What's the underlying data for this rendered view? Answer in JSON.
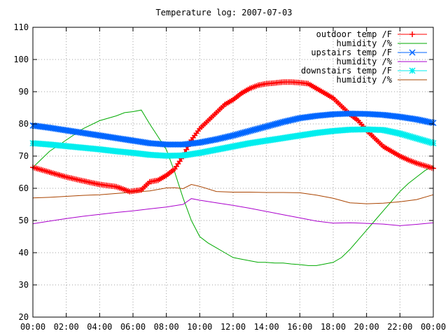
{
  "chart_data": {
    "type": "line",
    "title": "Temperature log: 2007-07-03",
    "xlabel": "",
    "ylabel": "",
    "xlim": [
      0,
      24
    ],
    "ylim": [
      20,
      110
    ],
    "x_ticks": [
      "00:00",
      "02:00",
      "04:00",
      "06:00",
      "08:00",
      "10:00",
      "12:00",
      "14:00",
      "16:00",
      "18:00",
      "20:00",
      "22:00",
      "00:00"
    ],
    "y_ticks": [
      "20",
      "30",
      "40",
      "50",
      "60",
      "70",
      "80",
      "90",
      "100",
      "110"
    ],
    "grid": true,
    "legend_position": "top-right",
    "series": [
      {
        "name": "outdoor temp /F",
        "color": "#ff0000",
        "marker": "plus",
        "x": [
          0,
          1,
          2,
          3,
          4,
          5,
          5.8,
          6.5,
          7,
          7.5,
          8,
          8.5,
          9,
          9.5,
          10,
          10.5,
          11,
          11.5,
          12,
          12.5,
          13,
          13.5,
          14,
          14.5,
          15,
          15.5,
          16,
          16.5,
          17,
          17.5,
          18,
          18.5,
          19,
          19.5,
          20,
          20.5,
          21,
          21.5,
          22,
          22.5,
          23,
          23.5,
          24
        ],
        "y": [
          66.5,
          65,
          63.5,
          62.3,
          61.2,
          60.5,
          59,
          59.5,
          62,
          62.5,
          64,
          66,
          70,
          75,
          78.5,
          81,
          83.5,
          86,
          87.5,
          89.5,
          91,
          92,
          92.5,
          92.7,
          93,
          93,
          92.8,
          92.5,
          91,
          89.5,
          88,
          85.5,
          83,
          81,
          78,
          75.5,
          73,
          71.5,
          70,
          68.8,
          67.8,
          67,
          66.2
        ]
      },
      {
        "name": "humidity /%",
        "color": "#00aa00",
        "marker": "none",
        "x": [
          0,
          1,
          2,
          3,
          4,
          5,
          5.5,
          6,
          6.5,
          7,
          7.5,
          8,
          8.5,
          9,
          9.5,
          10,
          10.5,
          11,
          11.5,
          12,
          12.5,
          13,
          13.5,
          14,
          14.5,
          15,
          15.5,
          16,
          16.5,
          17,
          17.5,
          18,
          18.5,
          19,
          19.5,
          20,
          20.5,
          21,
          21.5,
          22,
          22.5,
          23,
          23.5,
          24
        ],
        "y": [
          66.5,
          71.5,
          75,
          78.5,
          81,
          82.5,
          83.5,
          83.8,
          84.3,
          80,
          76,
          72,
          65,
          57,
          50,
          45,
          43,
          41.5,
          40,
          38.5,
          38,
          37.5,
          37,
          37,
          36.8,
          36.8,
          36.5,
          36.3,
          36,
          36,
          36.5,
          37,
          38.5,
          41,
          44,
          47,
          50,
          53,
          56,
          59,
          61.5,
          63.5,
          65.5,
          67
        ]
      },
      {
        "name": "upstairs temp /F",
        "color": "#0066ff",
        "marker": "x",
        "x": [
          0,
          1,
          2,
          3,
          4,
          5,
          6,
          7,
          8,
          9,
          10,
          11,
          12,
          13,
          14,
          15,
          16,
          17,
          18,
          19,
          20,
          21,
          22,
          23,
          24
        ],
        "y": [
          79.5,
          78.8,
          78,
          77.2,
          76.4,
          75.6,
          74.8,
          74,
          73.6,
          73.6,
          74.2,
          75.2,
          76.4,
          77.8,
          79.2,
          80.6,
          81.8,
          82.5,
          83,
          83.2,
          83.1,
          82.8,
          82.2,
          81.4,
          80.3
        ]
      },
      {
        "name": "humidity /%",
        "color": "#aa00cc",
        "marker": "none",
        "x": [
          0,
          1,
          2,
          3,
          4,
          5,
          6,
          7,
          8,
          9,
          9.5,
          10,
          11,
          12,
          13,
          14,
          15,
          16,
          17,
          18,
          19,
          20,
          21,
          22,
          23,
          24
        ],
        "y": [
          49,
          49.8,
          50.6,
          51.3,
          51.9,
          52.5,
          53,
          53.6,
          54.2,
          55,
          56.8,
          56.3,
          55.5,
          54.7,
          53.8,
          52.8,
          51.8,
          50.8,
          49.8,
          49.2,
          49.3,
          49.1,
          48.9,
          48.4,
          48.8,
          49.3
        ]
      },
      {
        "name": "downstairs temp /F",
        "color": "#00eeee",
        "marker": "star",
        "x": [
          0,
          1,
          2,
          3,
          4,
          5,
          6,
          7,
          8,
          9,
          10,
          11,
          12,
          13,
          14,
          15,
          16,
          17,
          18,
          19,
          20,
          21,
          22,
          23,
          24
        ],
        "y": [
          74,
          73.6,
          73.1,
          72.6,
          72.1,
          71.5,
          71,
          70.4,
          70.1,
          70.2,
          71,
          72,
          73,
          74,
          74.8,
          75.6,
          76.4,
          77.2,
          77.8,
          78.2,
          78.3,
          78.1,
          77,
          75.5,
          74
        ]
      },
      {
        "name": "humidity /%",
        "color": "#aa4400",
        "marker": "none",
        "x": [
          0,
          1,
          2,
          3,
          4,
          5,
          6,
          7,
          8,
          8.5,
          9,
          9.5,
          10,
          11,
          12,
          13,
          14,
          15,
          16,
          17,
          18,
          19,
          20,
          21,
          22,
          23,
          24
        ],
        "y": [
          57,
          57.2,
          57.5,
          57.8,
          58,
          58.4,
          58.8,
          59.2,
          60.1,
          60.2,
          59.9,
          61.2,
          60.6,
          59,
          58.8,
          58.8,
          58.7,
          58.7,
          58.6,
          57.9,
          56.9,
          55.5,
          55.2,
          55.4,
          55.8,
          56.5,
          58
        ]
      }
    ]
  }
}
